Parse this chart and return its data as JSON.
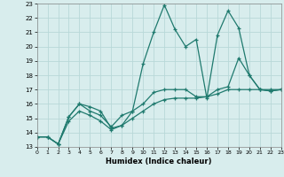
{
  "xlabel": "Humidex (Indice chaleur)",
  "xlim": [
    0,
    23
  ],
  "ylim": [
    13,
    23
  ],
  "yticks": [
    13,
    14,
    15,
    16,
    17,
    18,
    19,
    20,
    21,
    22,
    23
  ],
  "xticks": [
    0,
    1,
    2,
    3,
    4,
    5,
    6,
    7,
    8,
    9,
    10,
    11,
    12,
    13,
    14,
    15,
    16,
    17,
    18,
    19,
    20,
    21,
    22,
    23
  ],
  "color": "#1f7a6e",
  "bg_color": "#d8eded",
  "grid_color": "#b8d8d8",
  "lines": [
    {
      "x": [
        0,
        1,
        2,
        3,
        4,
        5,
        6,
        7,
        8,
        9,
        10,
        11,
        12,
        13,
        14,
        15,
        16,
        17,
        18,
        19,
        20,
        21,
        22,
        23
      ],
      "y": [
        13.7,
        13.7,
        13.2,
        15.1,
        16.0,
        15.8,
        15.5,
        14.3,
        14.5,
        15.5,
        18.8,
        21.0,
        22.9,
        21.2,
        20.0,
        20.5,
        16.4,
        20.8,
        22.5,
        21.3,
        18.0,
        17.0,
        16.9,
        17.0
      ]
    },
    {
      "x": [
        0,
        1,
        2,
        3,
        4,
        5,
        6,
        7,
        8,
        9,
        10,
        11,
        12,
        13,
        14,
        15,
        16,
        17,
        18,
        19,
        20,
        21,
        22,
        23
      ],
      "y": [
        13.7,
        13.7,
        13.2,
        15.1,
        16.0,
        15.5,
        15.2,
        14.4,
        15.2,
        15.5,
        16.0,
        16.8,
        17.0,
        17.0,
        17.0,
        16.5,
        16.5,
        17.0,
        17.2,
        19.2,
        18.0,
        17.0,
        16.9,
        17.0
      ]
    },
    {
      "x": [
        0,
        1,
        2,
        3,
        4,
        5,
        6,
        7,
        8,
        9,
        10,
        11,
        12,
        13,
        14,
        15,
        16,
        17,
        18,
        19,
        20,
        21,
        22,
        23
      ],
      "y": [
        13.7,
        13.7,
        13.2,
        14.8,
        15.5,
        15.2,
        14.8,
        14.2,
        14.5,
        15.0,
        15.5,
        16.0,
        16.3,
        16.4,
        16.4,
        16.4,
        16.5,
        16.7,
        17.0,
        17.0,
        17.0,
        17.0,
        17.0,
        17.0
      ]
    }
  ]
}
